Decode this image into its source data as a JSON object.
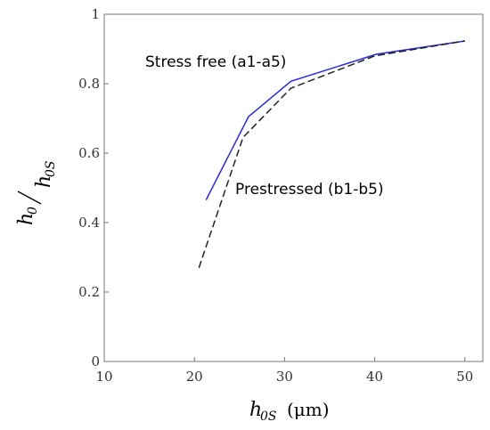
{
  "chart_data": {
    "type": "line",
    "title": "",
    "xlabel_main": "h",
    "xlabel_sub": "0S",
    "xlabel_unit": "(μm)",
    "ylabel_num_main": "h",
    "ylabel_num_sub": "0",
    "ylabel_den_main": "h",
    "ylabel_den_sub": "0S",
    "xlim": [
      10,
      52
    ],
    "ylim": [
      0,
      1
    ],
    "xticks": [
      10,
      20,
      30,
      40,
      50
    ],
    "yticks": [
      0,
      0.2,
      0.4,
      0.6,
      0.8,
      1
    ],
    "ytick_labels": [
      "0",
      "0.2",
      "0.4",
      "0.6",
      "0.8",
      "1"
    ],
    "grid": false,
    "series": [
      {
        "key": "stress-free",
        "color": "#2b2bd9",
        "dash": "solid",
        "x": [
          21.3,
          26.0,
          30.7,
          40.2,
          50.0
        ],
        "y": [
          0.465,
          0.705,
          0.807,
          0.885,
          0.923
        ]
      },
      {
        "key": "prestressed",
        "color": "#222222",
        "dash": "dashed",
        "x": [
          20.5,
          25.4,
          30.7,
          40.0,
          50.0
        ],
        "y": [
          0.27,
          0.645,
          0.787,
          0.88,
          0.923
        ]
      }
    ],
    "annotations": [
      {
        "key": "stress-free-label",
        "text": "Stress free (a1-a5)"
      },
      {
        "key": "prestressed-label",
        "text": "Prestressed (b1-b5)"
      }
    ]
  }
}
